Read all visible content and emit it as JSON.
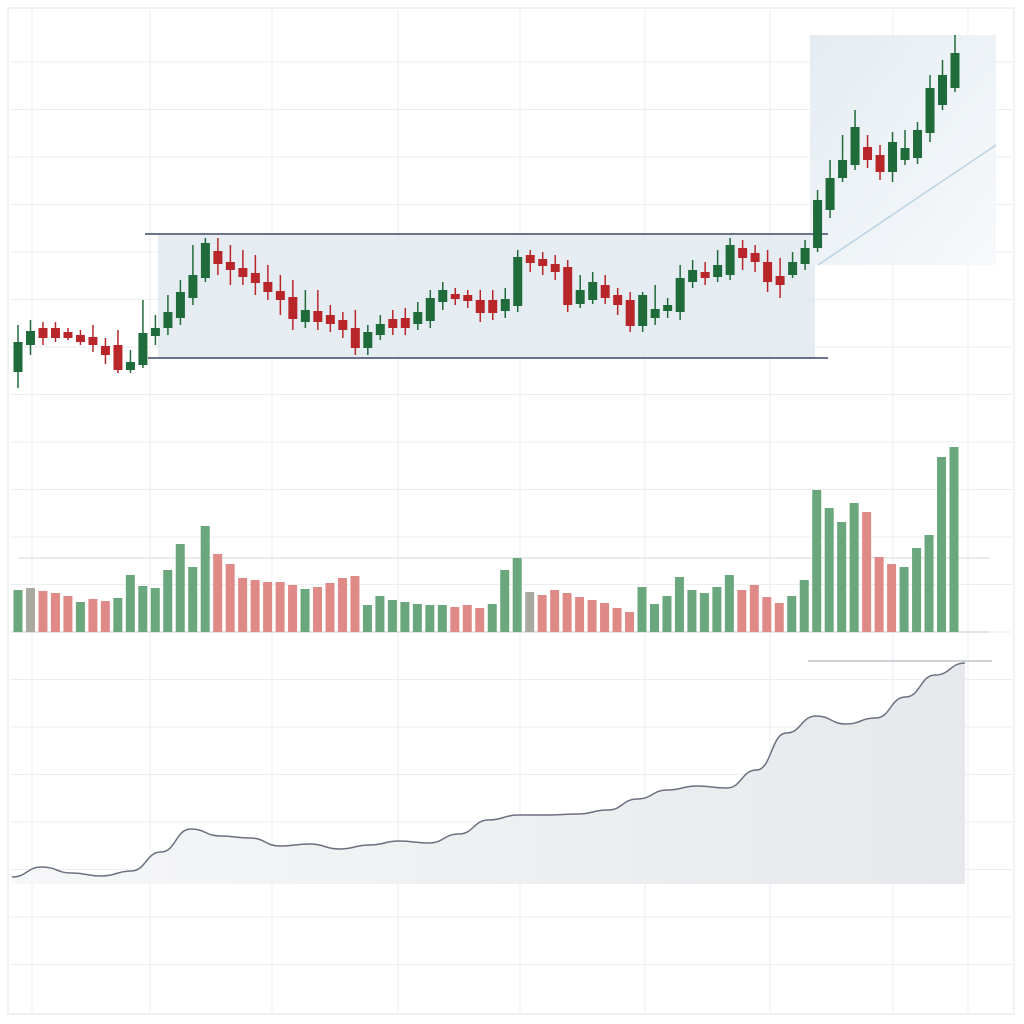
{
  "chart_data": [
    {
      "type": "candlestick",
      "title": "",
      "xlabel": "",
      "ylabel": "",
      "grid": true,
      "colors": {
        "up": "#1f6b3a",
        "down": "#b8262a"
      },
      "highlight_range_candles": [
        16,
        64
      ],
      "ohlc": [
        [
          28,
          75,
          12,
          58
        ],
        [
          55,
          80,
          45,
          69
        ],
        [
          72,
          78,
          55,
          62
        ],
        [
          72,
          78,
          58,
          62
        ],
        [
          68,
          72,
          60,
          62
        ],
        [
          65,
          70,
          55,
          58
        ],
        [
          63,
          75,
          48,
          55
        ],
        [
          54,
          62,
          36,
          45
        ],
        [
          55,
          70,
          27,
          30
        ],
        [
          30,
          50,
          27,
          38
        ],
        [
          35,
          100,
          32,
          67
        ],
        [
          64,
          85,
          55,
          72
        ],
        [
          72,
          105,
          65,
          88
        ],
        [
          82,
          120,
          75,
          108
        ],
        [
          102,
          155,
          95,
          125
        ],
        [
          122,
          162,
          118,
          157
        ],
        [
          149,
          162,
          125,
          136
        ],
        [
          138,
          155,
          115,
          130
        ],
        [
          132,
          150,
          115,
          123
        ],
        [
          127,
          145,
          105,
          117
        ],
        [
          118,
          135,
          100,
          108
        ],
        [
          109,
          125,
          85,
          100
        ],
        [
          103,
          120,
          70,
          81
        ],
        [
          78,
          110,
          72,
          90
        ],
        [
          89,
          110,
          70,
          78
        ],
        [
          85,
          95,
          68,
          76
        ],
        [
          80,
          88,
          62,
          70
        ],
        [
          72,
          90,
          45,
          52
        ],
        [
          52,
          75,
          45,
          68
        ],
        [
          65,
          85,
          60,
          76
        ],
        [
          81,
          90,
          65,
          72
        ],
        [
          82,
          92,
          65,
          72
        ],
        [
          76,
          98,
          70,
          88
        ],
        [
          79,
          110,
          72,
          102
        ],
        [
          98,
          118,
          90,
          110
        ],
        [
          106,
          112,
          95,
          101
        ],
        [
          105,
          110,
          92,
          99
        ],
        [
          100,
          110,
          78,
          87
        ],
        [
          100,
          110,
          80,
          87
        ],
        [
          89,
          112,
          82,
          101
        ],
        [
          94,
          150,
          88,
          143
        ],
        [
          145,
          150,
          128,
          137
        ],
        [
          141,
          148,
          125,
          134
        ],
        [
          136,
          145,
          120,
          128
        ],
        [
          133,
          140,
          88,
          95
        ],
        [
          96,
          125,
          92,
          110
        ],
        [
          100,
          128,
          96,
          118
        ],
        [
          115,
          125,
          96,
          102
        ],
        [
          105,
          112,
          85,
          95
        ],
        [
          100,
          108,
          68,
          74
        ],
        [
          74,
          108,
          68,
          105
        ],
        [
          82,
          115,
          75,
          91
        ],
        [
          89,
          102,
          82,
          95
        ],
        [
          88,
          135,
          80,
          122
        ],
        [
          118,
          140,
          112,
          130
        ],
        [
          128,
          138,
          115,
          122
        ],
        [
          123,
          150,
          118,
          135
        ],
        [
          125,
          162,
          120,
          155
        ],
        [
          152,
          160,
          130,
          142
        ],
        [
          147,
          155,
          128,
          138
        ],
        [
          138,
          150,
          108,
          118
        ],
        [
          124,
          142,
          102,
          115
        ],
        [
          125,
          148,
          122,
          138
        ],
        [
          136,
          160,
          130,
          152
        ],
        [
          152,
          210,
          148,
          200
        ],
        [
          190,
          240,
          182,
          222
        ],
        [
          222,
          265,
          218,
          240
        ],
        [
          235,
          290,
          230,
          273
        ],
        [
          253,
          265,
          232,
          240
        ],
        [
          245,
          255,
          220,
          228
        ],
        [
          228,
          268,
          218,
          258
        ],
        [
          240,
          270,
          235,
          252
        ],
        [
          242,
          278,
          236,
          270
        ],
        [
          267,
          325,
          258,
          312
        ],
        [
          295,
          340,
          290,
          325
        ],
        [
          312,
          365,
          308,
          347
        ]
      ]
    },
    {
      "type": "bar",
      "title": "",
      "colors": {
        "g": "#6aa77c",
        "r": "#e08a88",
        "n": "#a9a9a0"
      },
      "values": [
        42,
        44,
        41,
        39,
        36,
        30,
        33,
        31,
        34,
        57,
        46,
        44,
        62,
        88,
        65,
        106,
        78,
        68,
        54,
        52,
        50,
        50,
        47,
        43,
        45,
        49,
        54,
        56,
        27,
        36,
        32,
        30,
        28,
        27,
        27,
        25,
        27,
        24,
        28,
        62,
        74,
        40,
        37,
        42,
        39,
        35,
        32,
        29,
        24,
        20,
        45,
        28,
        36,
        55,
        42,
        39,
        45,
        57,
        42,
        47,
        35,
        29,
        36,
        52,
        142,
        124,
        110,
        129,
        120,
        75,
        68,
        65,
        84,
        97,
        175,
        185
      ],
      "bar_colors": [
        "g",
        "n",
        "r",
        "r",
        "r",
        "g",
        "r",
        "r",
        "g",
        "g",
        "g",
        "g",
        "g",
        "g",
        "g",
        "g",
        "r",
        "r",
        "r",
        "r",
        "r",
        "r",
        "r",
        "g",
        "r",
        "r",
        "r",
        "r",
        "g",
        "g",
        "g",
        "g",
        "g",
        "g",
        "g",
        "r",
        "r",
        "r",
        "g",
        "g",
        "g",
        "n",
        "r",
        "r",
        "r",
        "r",
        "r",
        "r",
        "r",
        "r",
        "g",
        "g",
        "g",
        "g",
        "g",
        "g",
        "g",
        "g",
        "r",
        "r",
        "r",
        "r",
        "g",
        "g",
        "g",
        "g",
        "g",
        "g",
        "r",
        "r",
        "r",
        "g",
        "g",
        "g",
        "g",
        "g"
      ]
    },
    {
      "type": "area",
      "title": "",
      "line_color": "#6b7080",
      "values": [
        7,
        17,
        11,
        8,
        13,
        32,
        55,
        48,
        46,
        38,
        40,
        35,
        39,
        43,
        41,
        50,
        64,
        69,
        69,
        70,
        74,
        85,
        94,
        98,
        96,
        114,
        151,
        168,
        160,
        166,
        187,
        209,
        221
      ]
    }
  ]
}
